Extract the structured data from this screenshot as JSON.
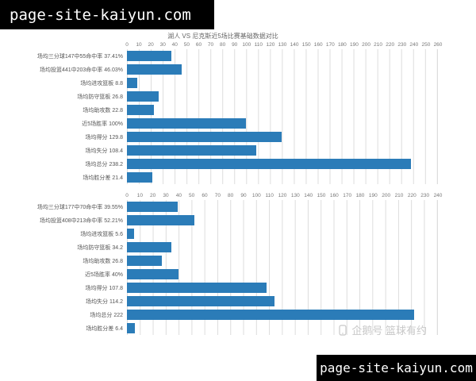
{
  "banner_top": {
    "text": "page-site-kaiyun.com"
  },
  "banner_bottom": {
    "text": "page-site-kaiyun.com"
  },
  "watermark": {
    "text": "企鹅号 篮球有约"
  },
  "colors": {
    "bar": "#2b7cb8",
    "grid": "#dcdcdc",
    "banner_bg": "#000000",
    "banner_text": "#ffffff",
    "axis_text": "#777777",
    "label_text": "#555555"
  },
  "chart_data": [
    {
      "type": "bar",
      "orientation": "horizontal",
      "title": "湖人 VS 尼克斯近5场比赛基础数据对比",
      "xlim": [
        0,
        260
      ],
      "xtick_interval": 10,
      "grid": true,
      "legend": "none",
      "xticks": [
        0,
        10,
        20,
        30,
        40,
        50,
        60,
        70,
        80,
        90,
        100,
        110,
        120,
        130,
        140,
        150,
        160,
        170,
        180,
        190,
        200,
        210,
        220,
        230,
        240,
        250,
        260
      ],
      "categories": [
        "场均三分球147中55命中率 37.41%",
        "场均投篮441中203命中率 46.03%",
        "场均进攻篮板 8.8",
        "场均防守篮板 26.8",
        "场均助攻数 22.8",
        "近5场胜率 100%",
        "场均得分 129.8",
        "场均失分 108.4",
        "场均总分 238.2",
        "场均胜分差 21.4"
      ],
      "values": [
        37.41,
        46.03,
        8.8,
        26.8,
        22.8,
        100,
        129.8,
        108.4,
        238.2,
        21.4
      ]
    },
    {
      "type": "bar",
      "orientation": "horizontal",
      "title": "",
      "xlim": [
        0,
        240
      ],
      "xtick_interval": 10,
      "grid": true,
      "legend": "none",
      "xticks": [
        0,
        10,
        20,
        30,
        40,
        50,
        60,
        70,
        80,
        90,
        100,
        110,
        120,
        130,
        140,
        150,
        160,
        170,
        180,
        190,
        200,
        210,
        220,
        230,
        240
      ],
      "categories": [
        "场均三分球177中70命中率 39.55%",
        "场均投篮408中213命中率 52.21%",
        "场均进攻篮板 5.6",
        "场均防守篮板 34.2",
        "场均助攻数 26.8",
        "近5场胜率 40%",
        "场均得分 107.8",
        "场均失分 114.2",
        "场均总分 222",
        "场均胜分差 6.4"
      ],
      "values": [
        39.55,
        52.21,
        5.6,
        34.2,
        26.8,
        40,
        107.8,
        114.2,
        222,
        6.4
      ]
    }
  ]
}
